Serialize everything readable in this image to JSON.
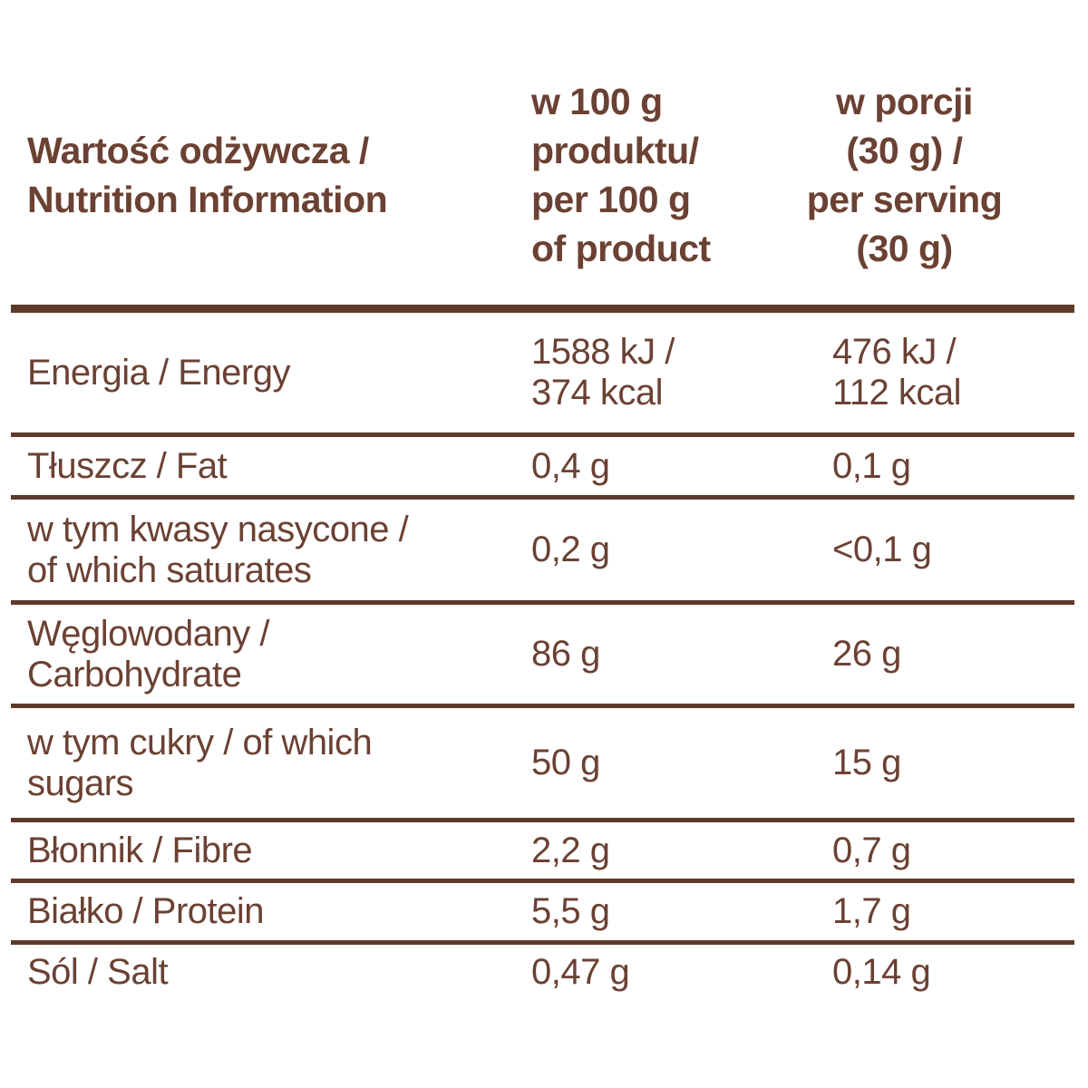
{
  "colors": {
    "text": "#6b4133",
    "line": "#5f3a2a"
  },
  "table": {
    "header": {
      "col1": "Wartość odżywcza /\nNutrition Information",
      "col2": "w 100 g\nproduktu/\nper 100 g\nof product",
      "col3": "w porcji\n(30 g) /\nper serving\n(30 g)"
    },
    "rows": [
      {
        "label": "Energia / Energy",
        "per100": "1588 kJ /\n374 kcal",
        "serving": "476 kJ /\n112 kcal"
      },
      {
        "label": "Tłuszcz / Fat",
        "per100": "0,4 g",
        "serving": "0,1 g"
      },
      {
        "label": "w tym kwasy nasycone /\nof which saturates",
        "per100": "0,2 g",
        "serving": "<0,1 g"
      },
      {
        "label": "Węglowodany /\nCarbohydrate",
        "per100": "86 g",
        "serving": "26 g"
      },
      {
        "label": "w tym cukry / of which\nsugars",
        "per100": "50 g",
        "serving": "15 g"
      },
      {
        "label": "Błonnik / Fibre",
        "per100": "2,2 g",
        "serving": "0,7 g"
      },
      {
        "label": "Białko / Protein",
        "per100": "5,5 g",
        "serving": "1,7 g"
      },
      {
        "label": "Sól / Salt",
        "per100": "0,47 g",
        "serving": "0,14 g"
      }
    ]
  }
}
